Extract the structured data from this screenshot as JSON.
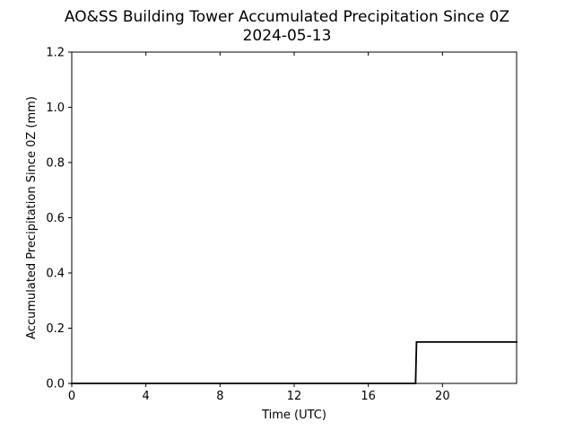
{
  "chart_data": {
    "type": "line",
    "title": "AO&SS Building Tower Accumulated Precipitation Since 0Z",
    "subtitle": "2024-05-13",
    "xlabel": "Time (UTC)",
    "ylabel": "Accumulated Precipitation Since 0Z (mm)",
    "xlim": [
      0,
      24
    ],
    "ylim": [
      0,
      1.2
    ],
    "xticks": [
      0,
      4,
      8,
      12,
      16,
      20
    ],
    "yticks": [
      0.0,
      0.2,
      0.4,
      0.6,
      0.8,
      1.0,
      1.2
    ],
    "ytick_labels": [
      "0.0",
      "0.2",
      "0.4",
      "0.6",
      "0.8",
      "1.0",
      "1.2"
    ],
    "grid": false,
    "line_color": "#000000",
    "series": [
      {
        "x": [
          0,
          18.55,
          18.6,
          24
        ],
        "y": [
          0,
          0,
          0.15,
          0.15
        ]
      }
    ]
  }
}
